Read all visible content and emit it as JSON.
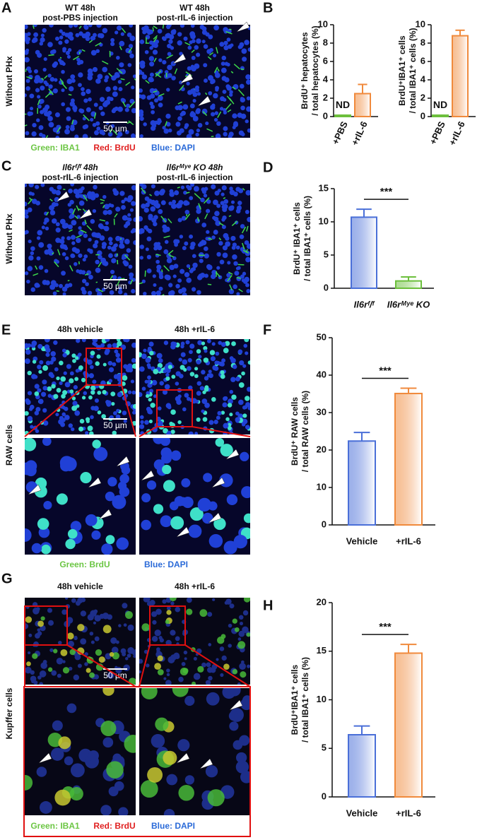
{
  "panel_letters": [
    "A",
    "B",
    "C",
    "D",
    "E",
    "F",
    "G",
    "H"
  ],
  "image_panels": [
    {
      "titles": [
        [
          "WT 48h",
          "post-PBS injection"
        ],
        [
          "WT 48h",
          "post-rIL-6 injection"
        ]
      ],
      "side_label": "Without PHx",
      "scale_bar": "50 µm",
      "caption": [
        "Green: IBA1",
        "Red: BrdU",
        "Blue: DAPI"
      ]
    },
    {
      "titles": [
        [
          "Il6rᶠ/ᶠ 48h",
          "post-rIL-6 injection"
        ],
        [
          "Il6rᴹʸᵉ KO 48h",
          "post-rIL-6 injection"
        ]
      ],
      "side_label": "Without PHx",
      "scale_bar": "50 µm"
    },
    {
      "titles": [
        [
          "48h vehicle"
        ],
        [
          "48h +rIL-6"
        ]
      ],
      "side_label": "RAW cells",
      "scale_bar": "50 µm",
      "caption": [
        "Green: BrdU",
        "Blue: DAPI"
      ]
    },
    {
      "titles": [
        [
          "48h vehicle"
        ],
        [
          "48h +rIL-6"
        ]
      ],
      "side_label": "Kupffer cells",
      "scale_bar": "50 µm",
      "caption": [
        "Green: IBA1",
        "Red: BrdU",
        "Blue: DAPI"
      ]
    }
  ],
  "chart_data": [
    {
      "type": "bar",
      "y_label": [
        "BrdU⁺ hepatocytes",
        "/ total hepatocytes (%)"
      ],
      "categories": [
        "+PBS",
        "+rIL-6"
      ],
      "values": [
        0.15,
        2.5
      ],
      "errors": [
        0,
        1.0
      ],
      "colors": [
        "#6cbf3c",
        "#f08a3c"
      ],
      "ylim": [
        0,
        10
      ],
      "yticks": [
        0,
        2,
        4,
        6,
        8,
        10
      ],
      "annotation": "ND"
    },
    {
      "type": "bar",
      "y_label": [
        "BrdU⁺IBA1⁺ cells",
        "/ total IBA1⁺ cells (%)"
      ],
      "categories": [
        "+PBS",
        "+rIL-6"
      ],
      "values": [
        0.15,
        8.8
      ],
      "errors": [
        0,
        0.6
      ],
      "colors": [
        "#6cbf3c",
        "#f08a3c"
      ],
      "ylim": [
        0,
        10
      ],
      "yticks": [
        0,
        2,
        4,
        6,
        8,
        10
      ],
      "annotation": "ND"
    },
    {
      "type": "bar",
      "y_label": [
        "BrdU⁺ IBA1⁺ cells",
        "/ total IBA1⁺ cells (%)"
      ],
      "categories": [
        "Il6rᶠ/ᶠ",
        "Il6rᴹʸᵉ KO"
      ],
      "values": [
        10.7,
        1.1
      ],
      "errors": [
        1.2,
        0.6
      ],
      "colors": [
        "#4a6fd8",
        "#6cbf3c"
      ],
      "ylim": [
        0,
        15
      ],
      "yticks": [
        0,
        5,
        10,
        15
      ],
      "annotation": "***"
    },
    {
      "type": "bar",
      "y_label": [
        "BrdU⁺ RAW cells",
        "/ total RAW cells (%)"
      ],
      "categories": [
        "Vehicle",
        "+rIL-6"
      ],
      "values": [
        22.4,
        35.1
      ],
      "errors": [
        2.3,
        1.4
      ],
      "colors": [
        "#4a6fd8",
        "#f08a3c"
      ],
      "ylim": [
        0,
        50
      ],
      "yticks": [
        0,
        10,
        20,
        30,
        40,
        50
      ],
      "annotation": "***"
    },
    {
      "type": "bar",
      "y_label": [
        "BrdU⁺IBA1⁺ cells",
        "/ total IBA1⁺ cells (%)"
      ],
      "categories": [
        "Vehicle",
        "+rIL-6"
      ],
      "values": [
        6.4,
        14.8
      ],
      "errors": [
        0.9,
        0.9
      ],
      "colors": [
        "#4a6fd8",
        "#f08a3c"
      ],
      "ylim": [
        0,
        20
      ],
      "yticks": [
        0,
        5,
        10,
        15,
        20
      ],
      "annotation": "***"
    }
  ]
}
